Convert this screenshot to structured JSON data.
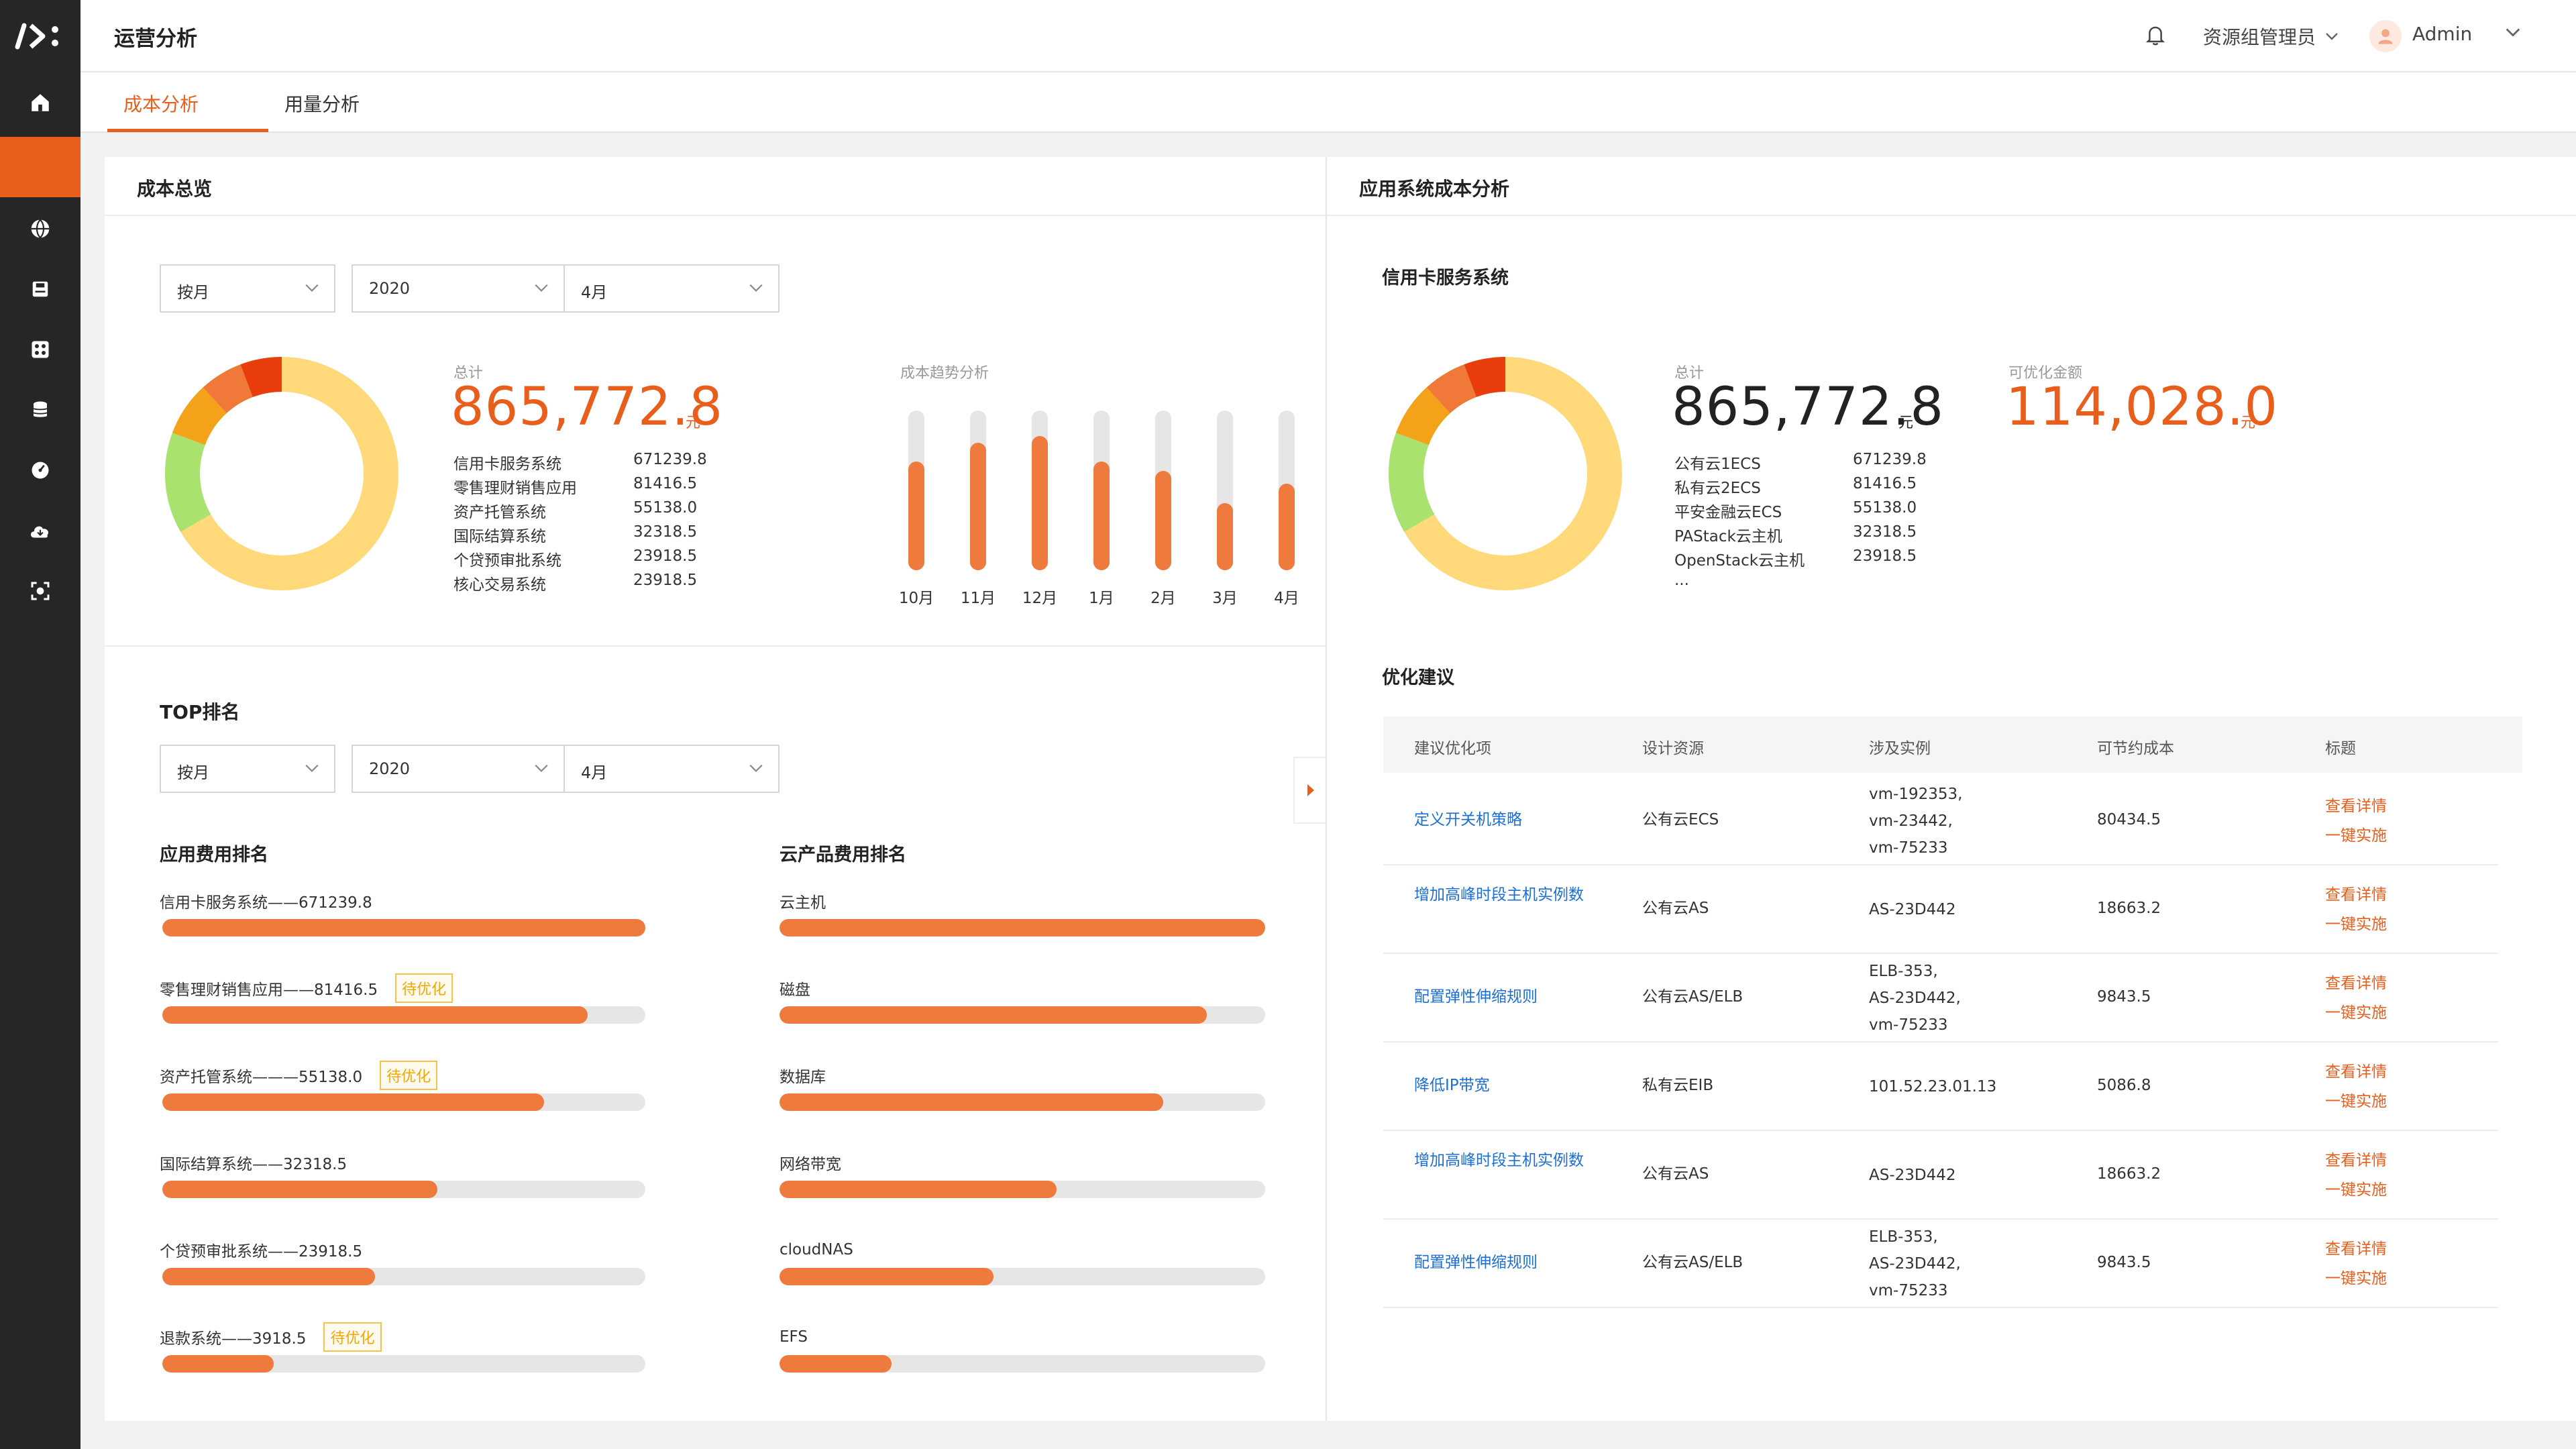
{
  "colors": {
    "accent": "#ea5e1c",
    "bar": "#ee7a3d",
    "link": "#1b6fd6",
    "badge": "#f0a800",
    "donut_main": "#ffd97a",
    "donut_green": "#a9e26e",
    "donut_orange": "#f4a21a",
    "donut_deep": "#ea5e1c"
  },
  "header": {
    "title": "运营分析",
    "role": "资源组管理员",
    "user": "Admin"
  },
  "tabs": [
    {
      "label": "成本分析"
    },
    {
      "label": "用量分析"
    }
  ],
  "overview": {
    "title": "成本总览",
    "filters": {
      "period": "按月",
      "year": "2020",
      "month": "4月"
    },
    "total_label": "总计",
    "total_value": "865,772.8",
    "unit": "元",
    "legend": [
      {
        "name": "信用卡服务系统",
        "value": "671239.8"
      },
      {
        "name": "零售理财销售应用",
        "value": "81416.5"
      },
      {
        "name": "资产托管系统",
        "value": "55138.0"
      },
      {
        "name": "国际结算系统",
        "value": "32318.5"
      },
      {
        "name": "个贷预审批系统",
        "value": "23918.5"
      },
      {
        "name": "核心交易系统",
        "value": "23918.5"
      }
    ],
    "trend_title": "成本趋势分析",
    "trend": [
      {
        "month": "10月",
        "value": 0.68
      },
      {
        "month": "11月",
        "value": 0.8
      },
      {
        "month": "12月",
        "value": 0.84
      },
      {
        "month": "1月",
        "value": 0.68
      },
      {
        "month": "2月",
        "value": 0.62
      },
      {
        "month": "3月",
        "value": 0.42
      },
      {
        "month": "4月",
        "value": 0.54
      }
    ]
  },
  "top": {
    "title": "TOP排名",
    "filters": {
      "period": "按月",
      "year": "2020",
      "month": "4月"
    },
    "app_title": "应用费用排名",
    "apps": [
      {
        "label": "信用卡服务系统——671239.8",
        "badge": "",
        "fraction": 1.0
      },
      {
        "label": "零售理财销售应用——81416.5",
        "badge": "待优化",
        "fraction": 0.88
      },
      {
        "label": "资产托管系统———55138.0",
        "badge": "待优化",
        "fraction": 0.79
      },
      {
        "label": "国际结算系统——32318.5",
        "badge": "",
        "fraction": 0.57
      },
      {
        "label": "个贷预审批系统——23918.5",
        "badge": "",
        "fraction": 0.44
      },
      {
        "label": "退款系统——3918.5",
        "badge": "待优化",
        "fraction": 0.23
      }
    ],
    "cloud_title": "云产品费用排名",
    "cloud": [
      {
        "label": "云主机",
        "fraction": 1.0
      },
      {
        "label": "磁盘",
        "fraction": 0.88
      },
      {
        "label": "数据库",
        "fraction": 0.79
      },
      {
        "label": "网络带宽",
        "fraction": 0.57
      },
      {
        "label": "cloudNAS",
        "fraction": 0.44
      },
      {
        "label": "EFS",
        "fraction": 0.23
      }
    ]
  },
  "app_analysis": {
    "title": "应用系统成本分析",
    "system": "信用卡服务系统",
    "total_label": "总计",
    "total_value": "865,772.8",
    "total_unit": "元",
    "saving_label": "可优化金额",
    "saving_value": "114,028.0",
    "saving_unit": "元",
    "legend": [
      {
        "name": "公有云1ECS",
        "value": "671239.8"
      },
      {
        "name": "私有云2ECS",
        "value": "81416.5"
      },
      {
        "name": "平安金融云ECS",
        "value": "55138.0"
      },
      {
        "name": "PAStack云主机",
        "value": "32318.5"
      },
      {
        "name": "OpenStack云主机",
        "value": "23918.5"
      }
    ],
    "legend_more": "...",
    "suggest_title": "优化建议",
    "columns": [
      "建议优化项",
      "设计资源",
      "涉及实例",
      "可节约成本",
      "标题"
    ],
    "rows": [
      {
        "item": "定义开关机策略",
        "resource": "公有云ECS",
        "instances": [
          "vm-192353,",
          "vm-23442,",
          "vm-75233"
        ],
        "saving": "80434.5"
      },
      {
        "item": "增加高峰时段主机实例数",
        "resource": "公有云AS",
        "instances": [
          "AS-23D442"
        ],
        "saving": "18663.2"
      },
      {
        "item": "配置弹性伸缩规则",
        "resource": "公有云AS/ELB",
        "instances": [
          "ELB-353,",
          "AS-23D442,",
          "vm-75233"
        ],
        "saving": "9843.5"
      },
      {
        "item": "降低IP带宽",
        "resource": "私有云EIB",
        "instances": [
          "101.52.23.01.13"
        ],
        "saving": "5086.8"
      },
      {
        "item": "增加高峰时段主机实例数",
        "resource": "公有云AS",
        "instances": [
          "AS-23D442"
        ],
        "saving": "18663.2"
      },
      {
        "item": "配置弹性伸缩规则",
        "resource": "公有云AS/ELB",
        "instances": [
          "ELB-353,",
          "AS-23D442,",
          "vm-75233"
        ],
        "saving": "9843.5"
      }
    ],
    "action_detail": "查看详情",
    "action_apply": "一键实施"
  }
}
